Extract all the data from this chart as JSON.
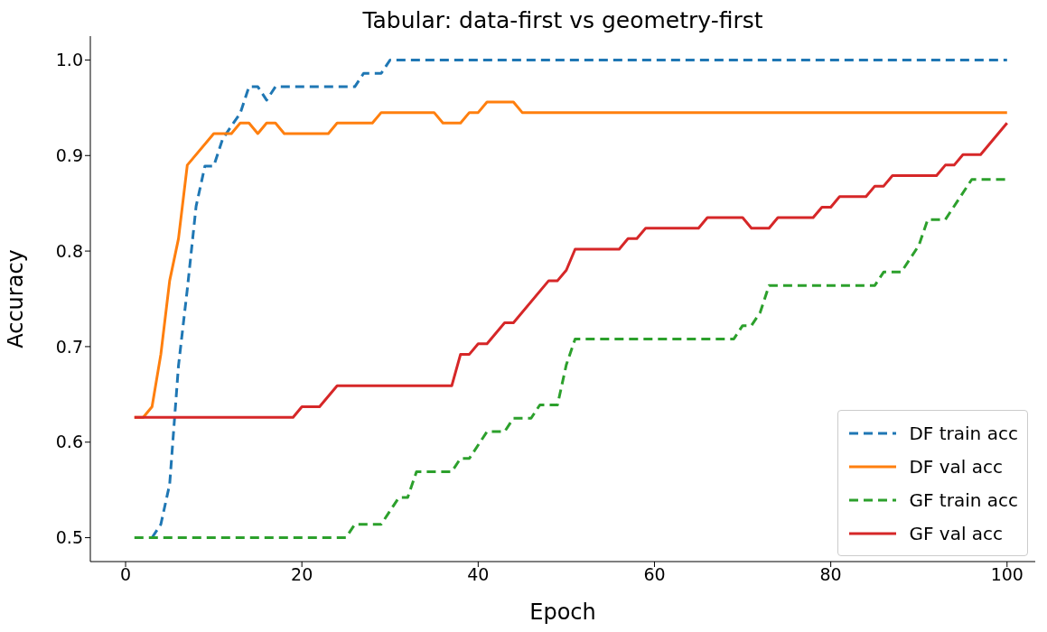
{
  "chart_data": {
    "type": "line",
    "title": "Tabular: data-first vs geometry-first",
    "xlabel": "Epoch",
    "ylabel": "Accuracy",
    "xlim": [
      -4,
      103.2
    ],
    "xticks": [
      0,
      20,
      40,
      60,
      80,
      100
    ],
    "ylim": [
      0.475,
      1.025
    ],
    "yticks": [
      {
        "value": 0.5,
        "label": "0.5"
      },
      {
        "value": 0.6,
        "label": "0.6"
      },
      {
        "value": 0.7,
        "label": "0.7"
      },
      {
        "value": 0.8,
        "label": "0.8"
      },
      {
        "value": 0.9,
        "label": "0.9"
      },
      {
        "value": 1.0,
        "label": "1.0"
      }
    ],
    "grid": false,
    "legend": "bottom right",
    "marker": "none",
    "series": [
      {
        "name": "DF train acc",
        "color": "#1f77b4",
        "line_style": "dashed",
        "x": [
          3,
          4,
          5,
          6,
          7,
          8,
          9,
          10,
          11,
          12,
          13,
          14,
          15,
          16,
          17,
          26,
          27,
          29,
          30,
          100
        ],
        "values": [
          0.5,
          0.514,
          0.556,
          0.68,
          0.76,
          0.847,
          0.889,
          0.889,
          0.917,
          0.931,
          0.944,
          0.972,
          0.972,
          0.958,
          0.972,
          0.972,
          0.986,
          0.986,
          1.0,
          1.0
        ]
      },
      {
        "name": "DF val acc",
        "color": "#ff7f0e",
        "line_style": "solid",
        "x": [
          1,
          2,
          3,
          4,
          5,
          6,
          7,
          10,
          12,
          13,
          14,
          15,
          16,
          17,
          18,
          23,
          24,
          28,
          29,
          35,
          36,
          38,
          39,
          40,
          41,
          44,
          45,
          100
        ],
        "values": [
          0.626,
          0.626,
          0.637,
          0.692,
          0.769,
          0.813,
          0.89,
          0.923,
          0.923,
          0.934,
          0.934,
          0.923,
          0.934,
          0.934,
          0.923,
          0.923,
          0.934,
          0.934,
          0.945,
          0.945,
          0.934,
          0.934,
          0.945,
          0.945,
          0.956,
          0.956,
          0.945,
          0.945
        ]
      },
      {
        "name": "GF train acc",
        "color": "#2ca02c",
        "line_style": "dashed",
        "x": [
          1,
          25,
          26,
          29,
          31,
          32,
          33,
          37,
          38,
          39,
          41,
          43,
          44,
          46,
          47,
          49,
          50,
          51,
          69,
          70,
          71,
          72,
          73,
          85,
          86,
          88,
          89,
          90,
          91,
          93,
          96,
          100
        ],
        "values": [
          0.5,
          0.5,
          0.514,
          0.514,
          0.542,
          0.542,
          0.569,
          0.569,
          0.583,
          0.583,
          0.611,
          0.611,
          0.625,
          0.625,
          0.639,
          0.639,
          0.681,
          0.708,
          0.708,
          0.722,
          0.722,
          0.736,
          0.764,
          0.764,
          0.778,
          0.778,
          0.792,
          0.806,
          0.833,
          0.833,
          0.875,
          0.875
        ]
      },
      {
        "name": "GF val acc",
        "color": "#d62728",
        "line_style": "solid",
        "x": [
          1,
          19,
          20,
          22,
          24,
          37,
          38,
          39,
          40,
          41,
          43,
          44,
          48,
          49,
          50,
          51,
          56,
          57,
          58,
          59,
          65,
          66,
          70,
          71,
          73,
          74,
          78,
          79,
          80,
          81,
          84,
          85,
          86,
          87,
          92,
          93,
          94,
          95,
          97,
          100
        ],
        "values": [
          0.626,
          0.626,
          0.637,
          0.637,
          0.659,
          0.659,
          0.692,
          0.692,
          0.703,
          0.703,
          0.725,
          0.725,
          0.769,
          0.769,
          0.78,
          0.802,
          0.802,
          0.813,
          0.813,
          0.824,
          0.824,
          0.835,
          0.835,
          0.824,
          0.824,
          0.835,
          0.835,
          0.846,
          0.846,
          0.857,
          0.857,
          0.868,
          0.868,
          0.879,
          0.879,
          0.89,
          0.89,
          0.901,
          0.901,
          0.934
        ]
      }
    ]
  }
}
